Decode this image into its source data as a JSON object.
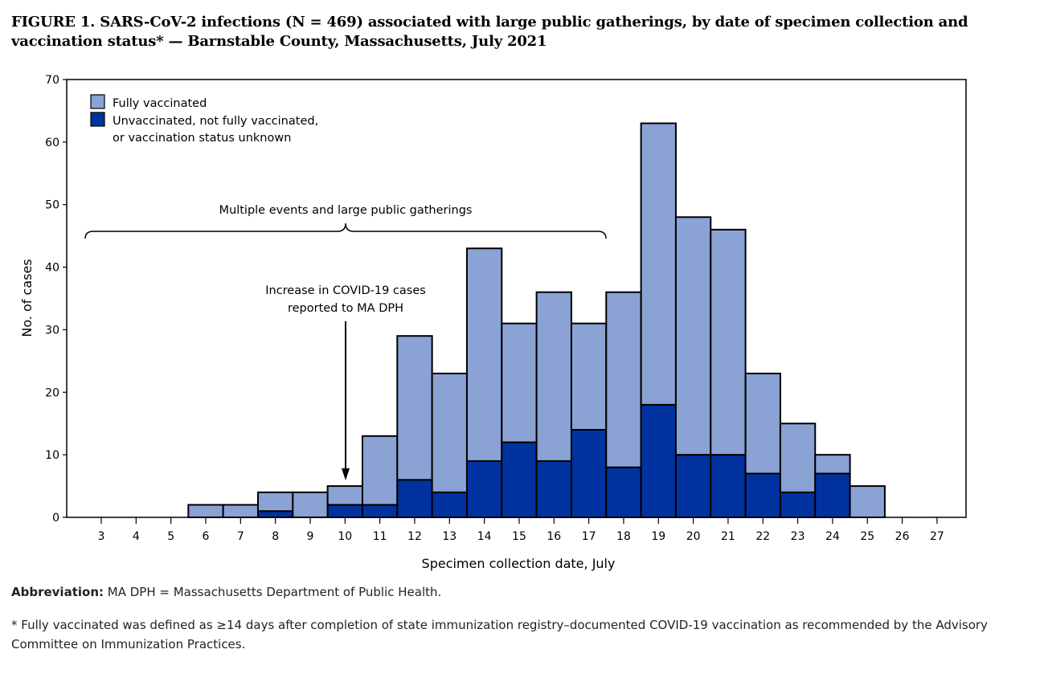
{
  "title": "FIGURE 1. SARS-CoV-2 infections (N = 469) associated with large public gatherings, by date of specimen collection and vaccination status* — Barnstable County, Massachusetts, July 2021",
  "abbreviation": {
    "label": "Abbreviation:",
    "text": "MA DPH = Massachusetts Department of Public Health."
  },
  "footnote": "* Fully vaccinated was defined as ≥14 days after completion of state immunization registry–documented COVID-19 vaccination as recommended by the Advisory Committee on Immunization Practices.",
  "chart_data": {
    "type": "bar",
    "stacked": true,
    "xlabel": "Specimen collection date, July",
    "ylabel": "No. of cases",
    "ylim": [
      0,
      70
    ],
    "yticks": [
      0,
      10,
      20,
      30,
      40,
      50,
      60,
      70
    ],
    "categories": [
      "3",
      "4",
      "5",
      "6",
      "7",
      "8",
      "9",
      "10",
      "11",
      "12",
      "13",
      "14",
      "15",
      "16",
      "17",
      "18",
      "19",
      "20",
      "21",
      "22",
      "23",
      "24",
      "25",
      "26",
      "27"
    ],
    "series": [
      {
        "name": "Unvaccinated, not fully vaccinated, or vaccination status unknown",
        "legend_lines": [
          "Unvaccinated, not fully vaccinated,",
          "or vaccination status unknown"
        ],
        "color": "#0033a0",
        "values": [
          0,
          0,
          0,
          0,
          0,
          1,
          0,
          2,
          2,
          6,
          4,
          9,
          12,
          9,
          14,
          8,
          18,
          10,
          10,
          7,
          4,
          7,
          0,
          0,
          0
        ]
      },
      {
        "name": "Fully vaccinated",
        "legend_lines": [
          "Fully vaccinated"
        ],
        "color": "#8aa2d4",
        "values": [
          0,
          0,
          0,
          2,
          2,
          3,
          4,
          3,
          11,
          23,
          19,
          34,
          19,
          27,
          17,
          28,
          45,
          38,
          36,
          16,
          11,
          3,
          5,
          0,
          0
        ]
      }
    ],
    "legend_placement": "top-left",
    "annotations": {
      "brace_label": "Multiple events and large public gatherings",
      "brace_range": [
        "3",
        "17"
      ],
      "arrow_label_lines": [
        "Increase in COVID-19 cases",
        "reported to MA DPH"
      ],
      "arrow_date": "10"
    }
  }
}
